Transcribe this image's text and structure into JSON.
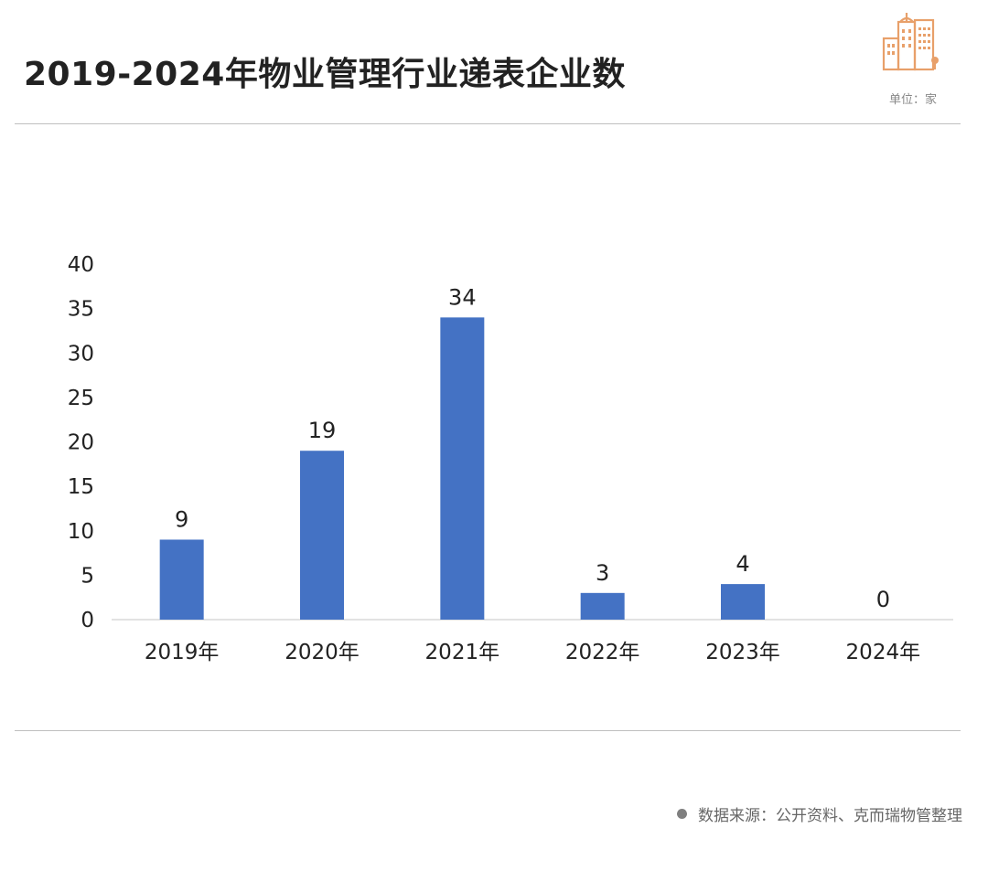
{
  "header": {
    "title": "2019-2024年物业管理行业递表企业数",
    "unit": "单位：家",
    "logo_icon": "buildings-icon",
    "accent_color": "#E8A06A"
  },
  "footer": {
    "source": "数据来源：公开资料、克而瑞物管整理",
    "dot_color": "#7f7f7f"
  },
  "chart_data": {
    "type": "bar",
    "title": "2019-2024年物业管理行业递表企业数",
    "categories": [
      "2019年",
      "2020年",
      "2021年",
      "2022年",
      "2023年",
      "2024年"
    ],
    "values": [
      9,
      19,
      34,
      3,
      4,
      0
    ],
    "data_labels": [
      "9",
      "19",
      "34",
      "3",
      "4",
      "0"
    ],
    "ylim": [
      0,
      40
    ],
    "yticks": [
      0,
      5,
      10,
      15,
      20,
      25,
      30,
      35,
      40
    ],
    "xlabel": "",
    "ylabel": "",
    "grid": false,
    "bar_color": "#4472C4"
  }
}
